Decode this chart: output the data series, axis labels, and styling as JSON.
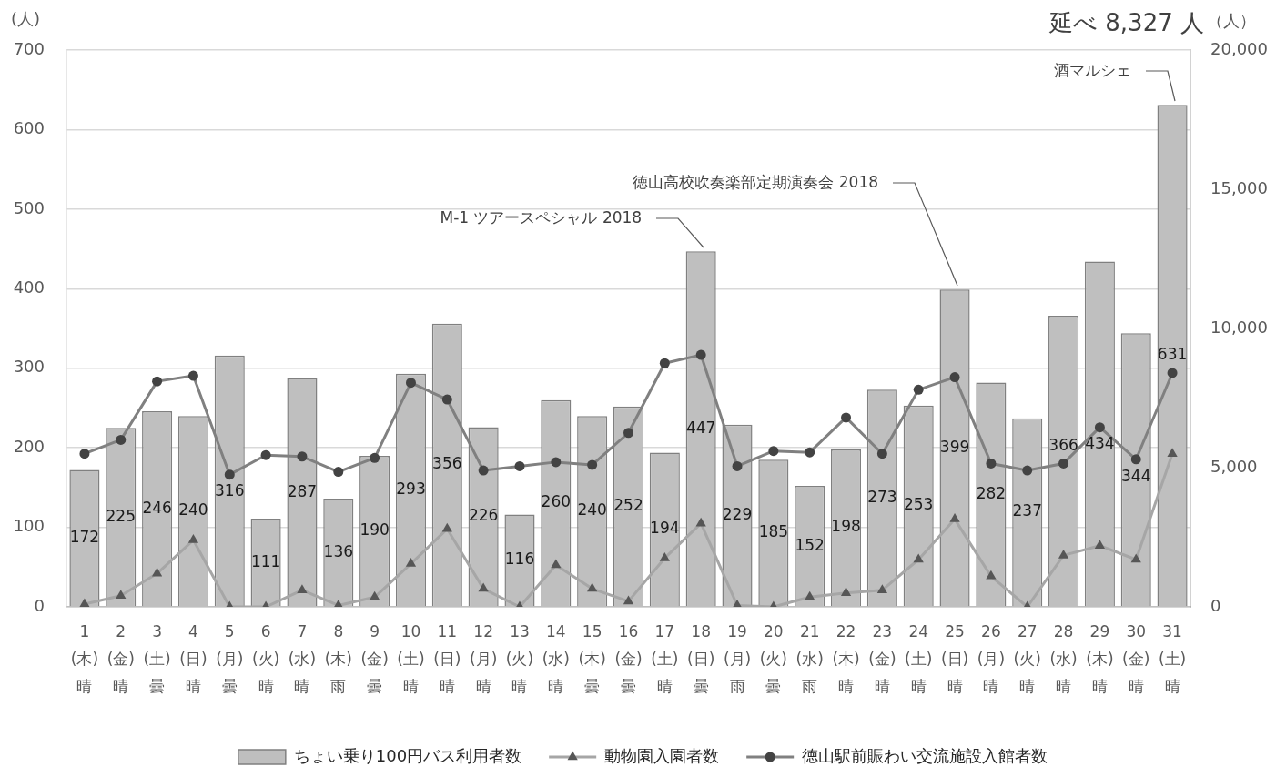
{
  "chart_data": {
    "type": "bar",
    "categories": [
      "1\n(木)\n晴",
      "2\n(金)\n晴",
      "3\n(土)\n曇",
      "4\n(日)\n晴",
      "5\n(月)\n曇",
      "6\n(火)\n晴",
      "7\n(水)\n晴",
      "8\n(木)\n雨",
      "9\n(金)\n曇",
      "10\n(土)\n晴",
      "11\n(日)\n晴",
      "12\n(月)\n晴",
      "13\n(火)\n晴",
      "14\n(水)\n晴",
      "15\n(木)\n曇",
      "16\n(金)\n曇",
      "17\n(土)\n晴",
      "18\n(日)\n曇",
      "19\n(月)\n雨",
      "20\n(火)\n曇",
      "21\n(水)\n雨",
      "22\n(木)\n晴",
      "23\n(金)\n晴",
      "24\n(土)\n晴",
      "25\n(日)\n晴",
      "26\n(月)\n晴",
      "27\n(火)\n晴",
      "28\n(水)\n晴",
      "29\n(木)\n晴",
      "30\n(金)\n晴",
      "31\n(土)\n晴"
    ],
    "ylabel": "(人)",
    "y2label": "（人）",
    "ylim": [
      0,
      700
    ],
    "yticks": [
      0,
      100,
      200,
      300,
      400,
      500,
      600,
      700
    ],
    "y2lim": [
      0,
      20000
    ],
    "y2ticks": [
      0,
      {
        "value": 5000,
        "label": "5,000"
      },
      {
        "value": 10000,
        "label": "10,000"
      },
      {
        "value": 15000,
        "label": "15,000"
      },
      {
        "value": 20000,
        "label": "20,000"
      }
    ],
    "grid": "y",
    "legend": "bottom",
    "series": [
      {
        "name": "ちょい乗り100円バス利用者数",
        "color": "#bfbfbf",
        "values": [
          172,
          225,
          246,
          240,
          316,
          111,
          287,
          136,
          190,
          293,
          356,
          226,
          116,
          260,
          240,
          252,
          194,
          447,
          229,
          185,
          152,
          198,
          273,
          253,
          399,
          282,
          237,
          366,
          434,
          344,
          631
        ],
        "value_labels": [
          "172",
          "225",
          "246",
          "240",
          "316",
          "111",
          "287",
          "136",
          "190",
          "293",
          "356",
          "226",
          "116",
          "260",
          "240",
          "252",
          "194",
          "447",
          "229",
          "185",
          "152",
          "198",
          "273",
          "253",
          "399",
          "282",
          "237",
          "366",
          "434",
          "344",
          "631"
        ]
      },
      {
        "name": "動物園入園者数",
        "type": "line",
        "axis": "y2",
        "color": "#a6a6a6",
        "marker": "triangle",
        "values": [
          100,
          400,
          1200,
          2400,
          0,
          0,
          600,
          50,
          350,
          1550,
          2800,
          650,
          0,
          1500,
          650,
          200,
          1750,
          3000,
          50,
          0,
          350,
          500,
          600,
          1700,
          3150,
          1100,
          0,
          1850,
          2200,
          1700,
          5500
        ]
      },
      {
        "name": "徳山駅前賑わい交流施設入館者数",
        "type": "line",
        "axis": "y2",
        "color": "#808080",
        "marker": "circle",
        "values": [
          5500,
          6000,
          8100,
          8300,
          4750,
          5450,
          5400,
          4850,
          5350,
          8050,
          7450,
          4900,
          5050,
          5200,
          5100,
          6250,
          8750,
          9050,
          5050,
          5600,
          5550,
          6800,
          5500,
          7800,
          8250,
          5150,
          4900,
          5150,
          6450,
          5300,
          8400
        ]
      }
    ],
    "annotations": [
      {
        "text": "M-1 ツアースペシャル 2018",
        "x": "18\n(日)\n曇",
        "y": 447
      },
      {
        "text": "徳山高校吹奏楽部定期演奏会 2018",
        "x": "25\n(日)\n晴",
        "y": 399
      },
      {
        "text": "酒マルシェ",
        "x": "31\n(土)\n晴",
        "y": 631
      },
      "延べ 8,327 人"
    ]
  }
}
